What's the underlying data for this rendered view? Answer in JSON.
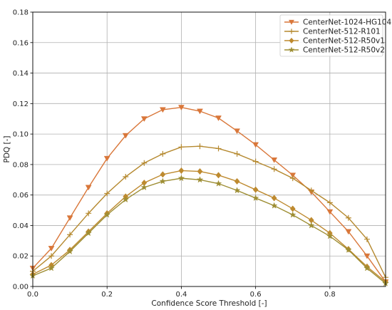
{
  "chart_data": {
    "type": "line",
    "title": "",
    "xlabel": "Confidence Score Threshold [-]",
    "ylabel": "PDQ [-]",
    "xlim": [
      0.0,
      0.95
    ],
    "ylim": [
      0.0,
      0.18
    ],
    "xticks": [
      "0.0",
      "0.2",
      "0.4",
      "0.6",
      "0.8"
    ],
    "yticks": [
      "0.00",
      "0.02",
      "0.04",
      "0.06",
      "0.08",
      "0.10",
      "0.12",
      "0.14",
      "0.16",
      "0.18"
    ],
    "grid": true,
    "legend_position": "top-right",
    "x": [
      0.0,
      0.05,
      0.1,
      0.15,
      0.2,
      0.25,
      0.3,
      0.35,
      0.4,
      0.45,
      0.5,
      0.55,
      0.6,
      0.65,
      0.7,
      0.75,
      0.8,
      0.85,
      0.9,
      0.95
    ],
    "series": [
      {
        "name": "CenterNet-1024-HG104",
        "marker": "triangle-down",
        "color": "#d9773a",
        "values": [
          0.012,
          0.025,
          0.045,
          0.065,
          0.084,
          0.099,
          0.11,
          0.116,
          0.1175,
          0.115,
          0.1105,
          0.102,
          0.093,
          0.083,
          0.073,
          0.062,
          0.049,
          0.036,
          0.02,
          0.003
        ]
      },
      {
        "name": "CenterNet-512-R101",
        "marker": "plus",
        "color": "#b5892f",
        "values": [
          0.01,
          0.02,
          0.034,
          0.048,
          0.061,
          0.072,
          0.081,
          0.087,
          0.0915,
          0.092,
          0.0905,
          0.087,
          0.082,
          0.077,
          0.071,
          0.063,
          0.055,
          0.045,
          0.031,
          0.006
        ]
      },
      {
        "name": "CenterNet-512-R50v1",
        "marker": "diamond",
        "color": "#be8a2f",
        "values": [
          0.008,
          0.014,
          0.024,
          0.036,
          0.048,
          0.059,
          0.068,
          0.0735,
          0.076,
          0.0755,
          0.073,
          0.069,
          0.0635,
          0.058,
          0.051,
          0.0435,
          0.035,
          0.0245,
          0.013,
          0.003
        ]
      },
      {
        "name": "CenterNet-512-R50v2",
        "marker": "star",
        "color": "#9e8e34",
        "values": [
          0.007,
          0.012,
          0.023,
          0.035,
          0.047,
          0.057,
          0.065,
          0.069,
          0.071,
          0.07,
          0.0675,
          0.063,
          0.058,
          0.053,
          0.047,
          0.04,
          0.033,
          0.024,
          0.012,
          0.002
        ]
      }
    ]
  }
}
